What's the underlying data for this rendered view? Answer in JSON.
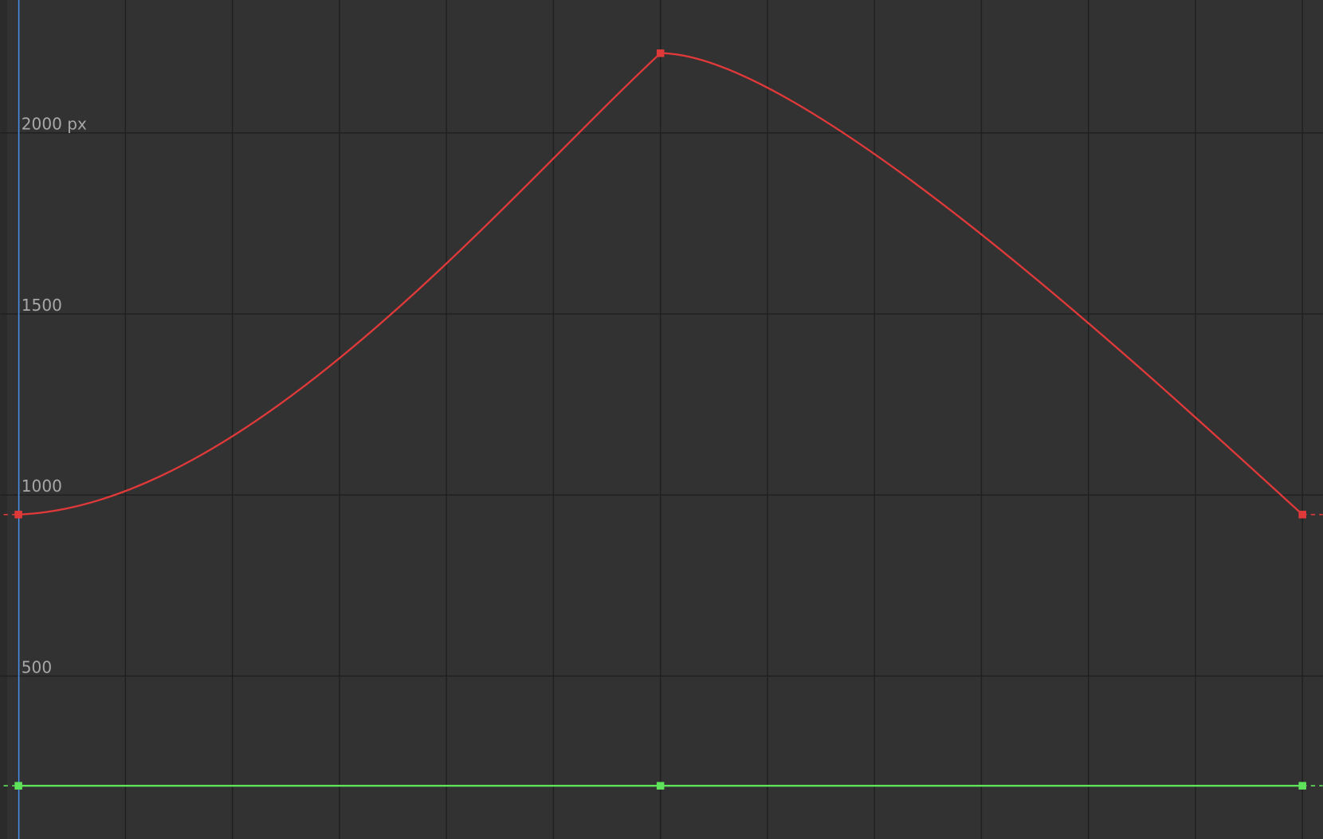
{
  "chart_data": {
    "type": "line",
    "x": [
      0,
      6,
      12
    ],
    "xlim": [
      -0.17,
      12.19
    ],
    "xticks": [
      0,
      1,
      2,
      3,
      4,
      5,
      6,
      7,
      8,
      9,
      10,
      11,
      12
    ],
    "ylim": [
      50,
      2367
    ],
    "yticks": [
      {
        "value": 2000,
        "label": "2000 px"
      },
      1500,
      1000,
      500
    ],
    "grid": true,
    "series": [
      {
        "color": "#e0393a",
        "values": [
          946,
          2220,
          946
        ]
      },
      {
        "color": "#5fe35a",
        "values": [
          197,
          197,
          197
        ]
      }
    ]
  }
}
